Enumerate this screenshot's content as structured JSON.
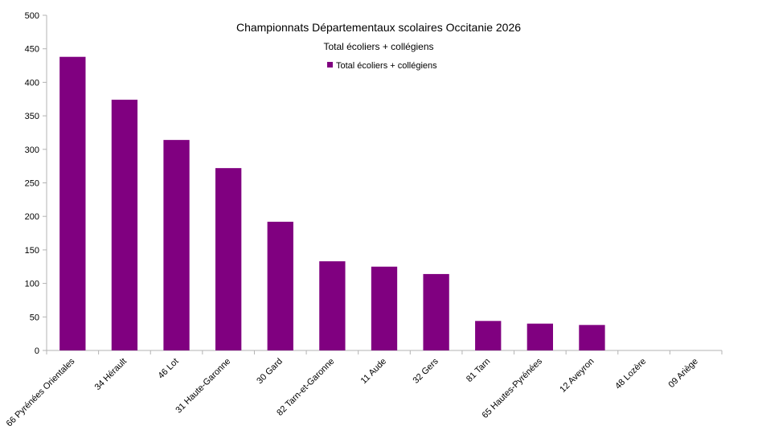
{
  "chart_data": {
    "type": "bar",
    "title": "Championnats Départementaux scolaires Occitanie 2026",
    "subtitle": "Total écoliers + collégiens",
    "legend": {
      "position": "top-center",
      "entries": [
        "Total écoliers + collégiens"
      ]
    },
    "categories": [
      "66 Pyrénées Orientales",
      "34 Hérault",
      "46 Lot",
      "31 Haute-Garonne",
      "30 Gard",
      "82 Tarn-et-Garonne",
      "11 Aude",
      "32 Gers",
      "81 Tarn",
      "65 Hautes-Pyrénées",
      "12 Aveyron",
      "48 Lozère",
      "09 Ariège"
    ],
    "series": [
      {
        "name": "Total écoliers + collégiens",
        "values": [
          438,
          374,
          314,
          272,
          192,
          133,
          125,
          114,
          44,
          40,
          38,
          0,
          0
        ],
        "color": "#800080"
      }
    ],
    "xlabel": "",
    "ylabel": "",
    "ylim": [
      0,
      500
    ],
    "yticks": [
      0,
      50,
      100,
      150,
      200,
      250,
      300,
      350,
      400,
      450,
      500
    ],
    "grid": false
  }
}
